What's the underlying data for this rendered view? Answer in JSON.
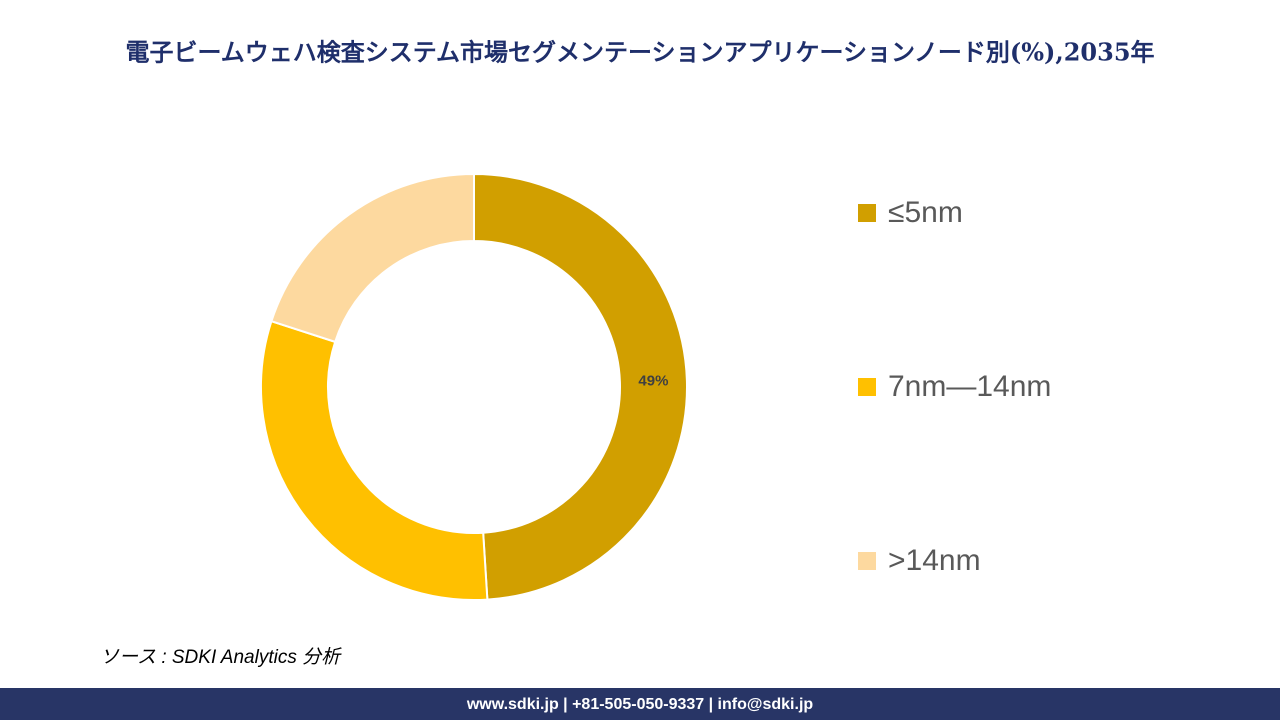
{
  "chart_data": {
    "type": "donut",
    "title": "電子ビームウェハ検査システム市場セグメンテーションアプリケーションノード別(%),2035年",
    "categories": [
      "≤5nm",
      "7nm—14nm",
      ">14nm"
    ],
    "values": [
      49,
      31,
      20
    ],
    "value_labels": [
      "49%",
      null,
      null
    ],
    "colors": [
      "#d19f00",
      "#ffc000",
      "#fdd99f"
    ],
    "legend": "right"
  },
  "source": "ソース : SDKI Analytics 分析",
  "footer": "www.sdki.jp | +81-505-050-9337 | info@sdki.jp"
}
